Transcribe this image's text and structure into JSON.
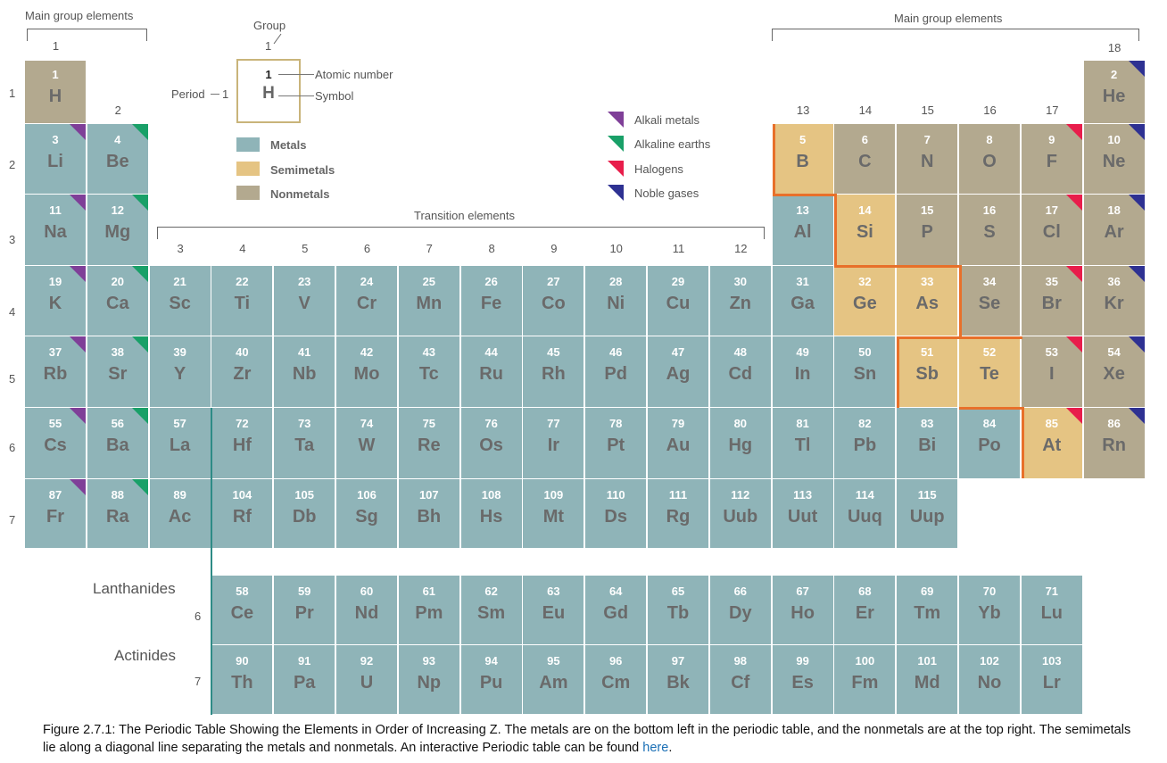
{
  "headers": {
    "main_group_left": "Main group elements",
    "main_group_right": "Main group elements",
    "transition": "Transition elements",
    "lanthanides": "Lanthanides",
    "actinides": "Actinides",
    "lanthanide_period": "6",
    "actinide_period": "7"
  },
  "groups": [
    "1",
    "2",
    "3",
    "4",
    "5",
    "6",
    "7",
    "8",
    "9",
    "10",
    "11",
    "12",
    "13",
    "14",
    "15",
    "16",
    "17",
    "18"
  ],
  "periods": [
    "1",
    "2",
    "3",
    "4",
    "5",
    "6",
    "7"
  ],
  "key": {
    "group_label": "Group",
    "group_num": "1",
    "period_label": "Period",
    "period_num": "1",
    "atomic_number": "1",
    "symbol": "H",
    "atomic_number_label": "Atomic number",
    "symbol_label": "Symbol"
  },
  "legend": {
    "metals": "Metals",
    "semimetals": "Semimetals",
    "nonmetals": "Nonmetals",
    "colors": {
      "metal": "#8fb4b8",
      "semimetal": "#e5c483",
      "nonmetal": "#b3a98f",
      "boundary": "#e8702a"
    }
  },
  "categories": {
    "alkali": "Alkali metals",
    "alkaline": "Alkaline earths",
    "halogen": "Halogens",
    "noble": "Noble gases",
    "colors": {
      "alkali": "#7f3f98",
      "alkaline": "#19a068",
      "halogen": "#e81d4b",
      "noble": "#2e3192"
    }
  },
  "elements": [
    {
      "z": "1",
      "s": "H",
      "p": 1,
      "g": 1,
      "t": "nonmetal"
    },
    {
      "z": "2",
      "s": "He",
      "p": 1,
      "g": 18,
      "t": "nonmetal",
      "c": "noble"
    },
    {
      "z": "3",
      "s": "Li",
      "p": 2,
      "g": 1,
      "t": "metal",
      "c": "alkali"
    },
    {
      "z": "4",
      "s": "Be",
      "p": 2,
      "g": 2,
      "t": "metal",
      "c": "alkaline"
    },
    {
      "z": "5",
      "s": "B",
      "p": 2,
      "g": 13,
      "t": "semimetal"
    },
    {
      "z": "6",
      "s": "C",
      "p": 2,
      "g": 14,
      "t": "nonmetal"
    },
    {
      "z": "7",
      "s": "N",
      "p": 2,
      "g": 15,
      "t": "nonmetal"
    },
    {
      "z": "8",
      "s": "O",
      "p": 2,
      "g": 16,
      "t": "nonmetal"
    },
    {
      "z": "9",
      "s": "F",
      "p": 2,
      "g": 17,
      "t": "nonmetal",
      "c": "halogen"
    },
    {
      "z": "10",
      "s": "Ne",
      "p": 2,
      "g": 18,
      "t": "nonmetal",
      "c": "noble"
    },
    {
      "z": "11",
      "s": "Na",
      "p": 3,
      "g": 1,
      "t": "metal",
      "c": "alkali"
    },
    {
      "z": "12",
      "s": "Mg",
      "p": 3,
      "g": 2,
      "t": "metal",
      "c": "alkaline"
    },
    {
      "z": "13",
      "s": "Al",
      "p": 3,
      "g": 13,
      "t": "metal"
    },
    {
      "z": "14",
      "s": "Si",
      "p": 3,
      "g": 14,
      "t": "semimetal"
    },
    {
      "z": "15",
      "s": "P",
      "p": 3,
      "g": 15,
      "t": "nonmetal"
    },
    {
      "z": "16",
      "s": "S",
      "p": 3,
      "g": 16,
      "t": "nonmetal"
    },
    {
      "z": "17",
      "s": "Cl",
      "p": 3,
      "g": 17,
      "t": "nonmetal",
      "c": "halogen"
    },
    {
      "z": "18",
      "s": "Ar",
      "p": 3,
      "g": 18,
      "t": "nonmetal",
      "c": "noble"
    },
    {
      "z": "19",
      "s": "K",
      "p": 4,
      "g": 1,
      "t": "metal",
      "c": "alkali"
    },
    {
      "z": "20",
      "s": "Ca",
      "p": 4,
      "g": 2,
      "t": "metal",
      "c": "alkaline"
    },
    {
      "z": "21",
      "s": "Sc",
      "p": 4,
      "g": 3,
      "t": "metal"
    },
    {
      "z": "22",
      "s": "Ti",
      "p": 4,
      "g": 4,
      "t": "metal"
    },
    {
      "z": "23",
      "s": "V",
      "p": 4,
      "g": 5,
      "t": "metal"
    },
    {
      "z": "24",
      "s": "Cr",
      "p": 4,
      "g": 6,
      "t": "metal"
    },
    {
      "z": "25",
      "s": "Mn",
      "p": 4,
      "g": 7,
      "t": "metal"
    },
    {
      "z": "26",
      "s": "Fe",
      "p": 4,
      "g": 8,
      "t": "metal"
    },
    {
      "z": "27",
      "s": "Co",
      "p": 4,
      "g": 9,
      "t": "metal"
    },
    {
      "z": "28",
      "s": "Ni",
      "p": 4,
      "g": 10,
      "t": "metal"
    },
    {
      "z": "29",
      "s": "Cu",
      "p": 4,
      "g": 11,
      "t": "metal"
    },
    {
      "z": "30",
      "s": "Zn",
      "p": 4,
      "g": 12,
      "t": "metal"
    },
    {
      "z": "31",
      "s": "Ga",
      "p": 4,
      "g": 13,
      "t": "metal"
    },
    {
      "z": "32",
      "s": "Ge",
      "p": 4,
      "g": 14,
      "t": "semimetal"
    },
    {
      "z": "33",
      "s": "As",
      "p": 4,
      "g": 15,
      "t": "semimetal"
    },
    {
      "z": "34",
      "s": "Se",
      "p": 4,
      "g": 16,
      "t": "nonmetal"
    },
    {
      "z": "35",
      "s": "Br",
      "p": 4,
      "g": 17,
      "t": "nonmetal",
      "c": "halogen"
    },
    {
      "z": "36",
      "s": "Kr",
      "p": 4,
      "g": 18,
      "t": "nonmetal",
      "c": "noble"
    },
    {
      "z": "37",
      "s": "Rb",
      "p": 5,
      "g": 1,
      "t": "metal",
      "c": "alkali"
    },
    {
      "z": "38",
      "s": "Sr",
      "p": 5,
      "g": 2,
      "t": "metal",
      "c": "alkaline"
    },
    {
      "z": "39",
      "s": "Y",
      "p": 5,
      "g": 3,
      "t": "metal"
    },
    {
      "z": "40",
      "s": "Zr",
      "p": 5,
      "g": 4,
      "t": "metal"
    },
    {
      "z": "41",
      "s": "Nb",
      "p": 5,
      "g": 5,
      "t": "metal"
    },
    {
      "z": "42",
      "s": "Mo",
      "p": 5,
      "g": 6,
      "t": "metal"
    },
    {
      "z": "43",
      "s": "Tc",
      "p": 5,
      "g": 7,
      "t": "metal"
    },
    {
      "z": "44",
      "s": "Ru",
      "p": 5,
      "g": 8,
      "t": "metal"
    },
    {
      "z": "45",
      "s": "Rh",
      "p": 5,
      "g": 9,
      "t": "metal"
    },
    {
      "z": "46",
      "s": "Pd",
      "p": 5,
      "g": 10,
      "t": "metal"
    },
    {
      "z": "47",
      "s": "Ag",
      "p": 5,
      "g": 11,
      "t": "metal"
    },
    {
      "z": "48",
      "s": "Cd",
      "p": 5,
      "g": 12,
      "t": "metal"
    },
    {
      "z": "49",
      "s": "In",
      "p": 5,
      "g": 13,
      "t": "metal"
    },
    {
      "z": "50",
      "s": "Sn",
      "p": 5,
      "g": 14,
      "t": "metal"
    },
    {
      "z": "51",
      "s": "Sb",
      "p": 5,
      "g": 15,
      "t": "semimetal"
    },
    {
      "z": "52",
      "s": "Te",
      "p": 5,
      "g": 16,
      "t": "semimetal"
    },
    {
      "z": "53",
      "s": "I",
      "p": 5,
      "g": 17,
      "t": "nonmetal",
      "c": "halogen"
    },
    {
      "z": "54",
      "s": "Xe",
      "p": 5,
      "g": 18,
      "t": "nonmetal",
      "c": "noble"
    },
    {
      "z": "55",
      "s": "Cs",
      "p": 6,
      "g": 1,
      "t": "metal",
      "c": "alkali"
    },
    {
      "z": "56",
      "s": "Ba",
      "p": 6,
      "g": 2,
      "t": "metal",
      "c": "alkaline"
    },
    {
      "z": "57",
      "s": "La",
      "p": 6,
      "g": 3,
      "t": "metal"
    },
    {
      "z": "72",
      "s": "Hf",
      "p": 6,
      "g": 4,
      "t": "metal"
    },
    {
      "z": "73",
      "s": "Ta",
      "p": 6,
      "g": 5,
      "t": "metal"
    },
    {
      "z": "74",
      "s": "W",
      "p": 6,
      "g": 6,
      "t": "metal"
    },
    {
      "z": "75",
      "s": "Re",
      "p": 6,
      "g": 7,
      "t": "metal"
    },
    {
      "z": "76",
      "s": "Os",
      "p": 6,
      "g": 8,
      "t": "metal"
    },
    {
      "z": "77",
      "s": "Ir",
      "p": 6,
      "g": 9,
      "t": "metal"
    },
    {
      "z": "78",
      "s": "Pt",
      "p": 6,
      "g": 10,
      "t": "metal"
    },
    {
      "z": "79",
      "s": "Au",
      "p": 6,
      "g": 11,
      "t": "metal"
    },
    {
      "z": "80",
      "s": "Hg",
      "p": 6,
      "g": 12,
      "t": "metal"
    },
    {
      "z": "81",
      "s": "Tl",
      "p": 6,
      "g": 13,
      "t": "metal"
    },
    {
      "z": "82",
      "s": "Pb",
      "p": 6,
      "g": 14,
      "t": "metal"
    },
    {
      "z": "83",
      "s": "Bi",
      "p": 6,
      "g": 15,
      "t": "metal"
    },
    {
      "z": "84",
      "s": "Po",
      "p": 6,
      "g": 16,
      "t": "metal"
    },
    {
      "z": "85",
      "s": "At",
      "p": 6,
      "g": 17,
      "t": "semimetal",
      "c": "halogen"
    },
    {
      "z": "86",
      "s": "Rn",
      "p": 6,
      "g": 18,
      "t": "nonmetal",
      "c": "noble"
    },
    {
      "z": "87",
      "s": "Fr",
      "p": 7,
      "g": 1,
      "t": "metal",
      "c": "alkali"
    },
    {
      "z": "88",
      "s": "Ra",
      "p": 7,
      "g": 2,
      "t": "metal",
      "c": "alkaline"
    },
    {
      "z": "89",
      "s": "Ac",
      "p": 7,
      "g": 3,
      "t": "metal"
    },
    {
      "z": "104",
      "s": "Rf",
      "p": 7,
      "g": 4,
      "t": "metal"
    },
    {
      "z": "105",
      "s": "Db",
      "p": 7,
      "g": 5,
      "t": "metal"
    },
    {
      "z": "106",
      "s": "Sg",
      "p": 7,
      "g": 6,
      "t": "metal"
    },
    {
      "z": "107",
      "s": "Bh",
      "p": 7,
      "g": 7,
      "t": "metal"
    },
    {
      "z": "108",
      "s": "Hs",
      "p": 7,
      "g": 8,
      "t": "metal"
    },
    {
      "z": "109",
      "s": "Mt",
      "p": 7,
      "g": 9,
      "t": "metal"
    },
    {
      "z": "110",
      "s": "Ds",
      "p": 7,
      "g": 10,
      "t": "metal"
    },
    {
      "z": "111",
      "s": "Rg",
      "p": 7,
      "g": 11,
      "t": "metal"
    },
    {
      "z": "112",
      "s": "Uub",
      "p": 7,
      "g": 12,
      "t": "metal"
    },
    {
      "z": "113",
      "s": "Uut",
      "p": 7,
      "g": 13,
      "t": "metal"
    },
    {
      "z": "114",
      "s": "Uuq",
      "p": 7,
      "g": 14,
      "t": "metal"
    },
    {
      "z": "115",
      "s": "Uup",
      "p": 7,
      "g": 15,
      "t": "metal"
    }
  ],
  "lanthanides": [
    {
      "z": "58",
      "s": "Ce"
    },
    {
      "z": "59",
      "s": "Pr"
    },
    {
      "z": "60",
      "s": "Nd"
    },
    {
      "z": "61",
      "s": "Pm"
    },
    {
      "z": "62",
      "s": "Sm"
    },
    {
      "z": "63",
      "s": "Eu"
    },
    {
      "z": "64",
      "s": "Gd"
    },
    {
      "z": "65",
      "s": "Tb"
    },
    {
      "z": "66",
      "s": "Dy"
    },
    {
      "z": "67",
      "s": "Ho"
    },
    {
      "z": "68",
      "s": "Er"
    },
    {
      "z": "69",
      "s": "Tm"
    },
    {
      "z": "70",
      "s": "Yb"
    },
    {
      "z": "71",
      "s": "Lu"
    }
  ],
  "actinides": [
    {
      "z": "90",
      "s": "Th"
    },
    {
      "z": "91",
      "s": "Pa"
    },
    {
      "z": "92",
      "s": "U"
    },
    {
      "z": "93",
      "s": "Np"
    },
    {
      "z": "94",
      "s": "Pu"
    },
    {
      "z": "95",
      "s": "Am"
    },
    {
      "z": "96",
      "s": "Cm"
    },
    {
      "z": "97",
      "s": "Bk"
    },
    {
      "z": "98",
      "s": "Cf"
    },
    {
      "z": "99",
      "s": "Es"
    },
    {
      "z": "100",
      "s": "Fm"
    },
    {
      "z": "101",
      "s": "Md"
    },
    {
      "z": "102",
      "s": "No"
    },
    {
      "z": "103",
      "s": "Lr"
    }
  ],
  "caption": {
    "text": "Figure 2.7.1: The Periodic Table Showing the Elements in Order of Increasing Z. The metals are on the bottom left in the periodic table, and the nonmetals are at the top right. The semimetals lie along a diagonal line separating the metals and nonmetals.  An interactive Periodic table can be found ",
    "link_text": "here",
    "end": "."
  }
}
